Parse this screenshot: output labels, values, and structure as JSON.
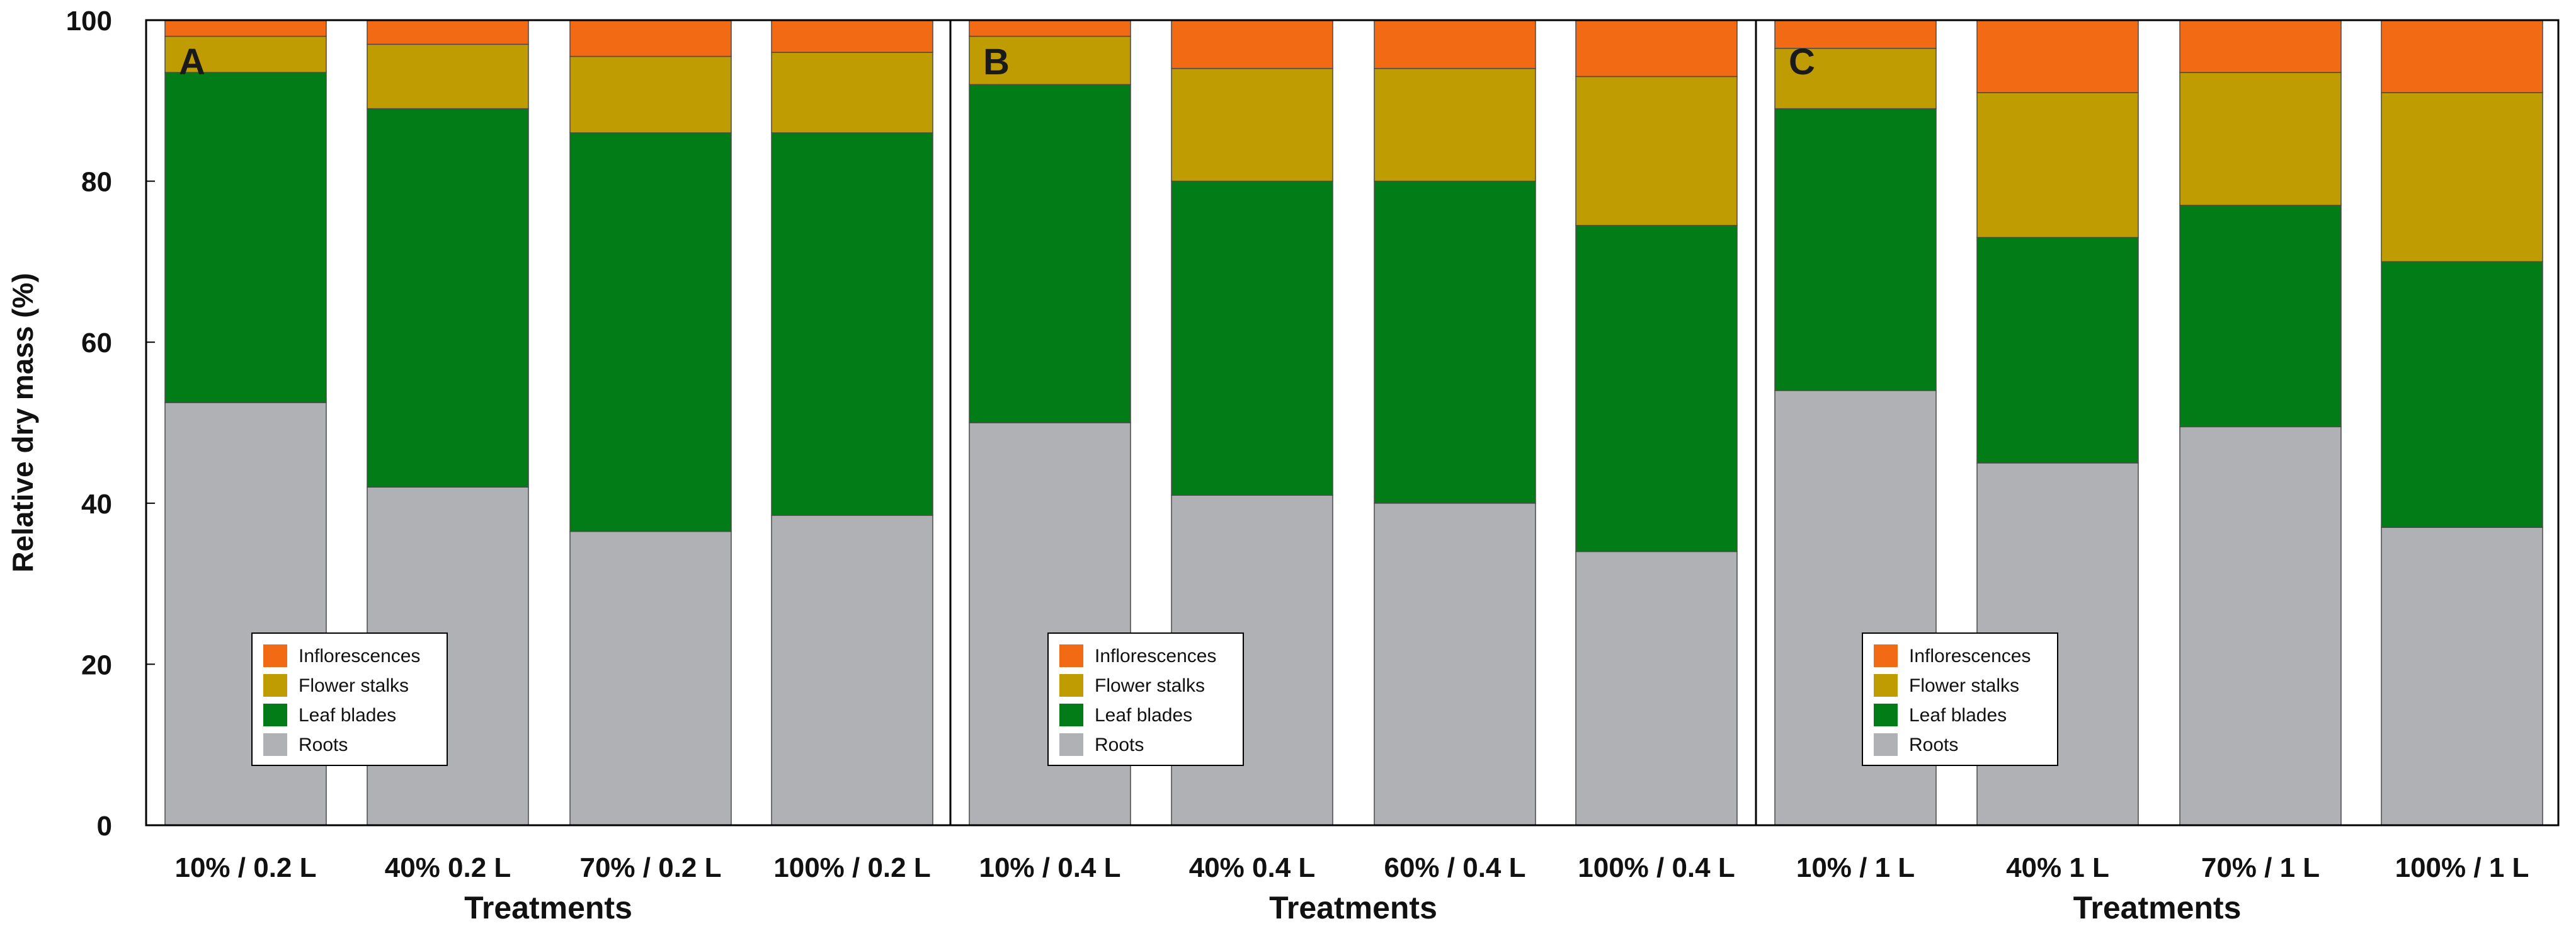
{
  "figure": {
    "ylabel": "Relative dry mass (%)",
    "yticks": [
      "0",
      "20",
      "40",
      "60",
      "80",
      "100"
    ]
  },
  "colors": {
    "Roots": "#b0b1b4",
    "Leaf blades": "#017c16",
    "Flower stalks": "#bf9c02",
    "Inflorescences": "#f26a13",
    "border": "#000000",
    "bar_edge": "#4a4a4a"
  },
  "chart_data": [
    {
      "type": "bar",
      "stacked": true,
      "panel_label": "A",
      "title": "",
      "xlabel": "Treatments",
      "ylabel": "Relative dry mass (%)",
      "ylim": [
        0,
        100
      ],
      "legend_position": "bottom-left",
      "categories": [
        "10% / 0.2 L",
        "40% 0.2 L",
        "70% / 0.2 L",
        "100% / 0.2 L"
      ],
      "series": [
        {
          "name": "Roots",
          "values": [
            52.5,
            42,
            36.5,
            38.5
          ]
        },
        {
          "name": "Leaf blades",
          "values": [
            41,
            47,
            49.5,
            47.5
          ]
        },
        {
          "name": "Flower stalks",
          "values": [
            4.5,
            8,
            9.5,
            10
          ]
        },
        {
          "name": "Inflorescences",
          "values": [
            2,
            3,
            4.5,
            4
          ]
        }
      ]
    },
    {
      "type": "bar",
      "stacked": true,
      "panel_label": "B",
      "title": "",
      "xlabel": "Treatments",
      "ylabel": "Relative dry mass (%)",
      "ylim": [
        0,
        100
      ],
      "legend_position": "bottom-center",
      "categories": [
        "10% / 0.4 L",
        "40% 0.4 L",
        "60% / 0.4 L",
        "100% / 0.4 L"
      ],
      "series": [
        {
          "name": "Roots",
          "values": [
            50,
            41,
            40,
            34
          ]
        },
        {
          "name": "Leaf blades",
          "values": [
            42,
            39,
            40,
            40.5
          ]
        },
        {
          "name": "Flower stalks",
          "values": [
            6,
            14,
            14,
            18.5
          ]
        },
        {
          "name": "Inflorescences",
          "values": [
            2,
            6,
            6,
            7
          ]
        }
      ]
    },
    {
      "type": "bar",
      "stacked": true,
      "panel_label": "C",
      "title": "",
      "xlabel": "Treatments",
      "ylabel": "Relative dry mass (%)",
      "ylim": [
        0,
        100
      ],
      "legend_position": "bottom-center",
      "categories": [
        "10% / 1 L",
        "40% 1 L",
        "70% / 1 L",
        "100% / 1 L"
      ],
      "series": [
        {
          "name": "Roots",
          "values": [
            54,
            45,
            49.5,
            37
          ]
        },
        {
          "name": "Leaf blades",
          "values": [
            35,
            28,
            27.5,
            33
          ]
        },
        {
          "name": "Flower stalks",
          "values": [
            7.5,
            18,
            16.5,
            21
          ]
        },
        {
          "name": "Inflorescences",
          "values": [
            3.5,
            9,
            6.5,
            9
          ]
        }
      ]
    }
  ]
}
